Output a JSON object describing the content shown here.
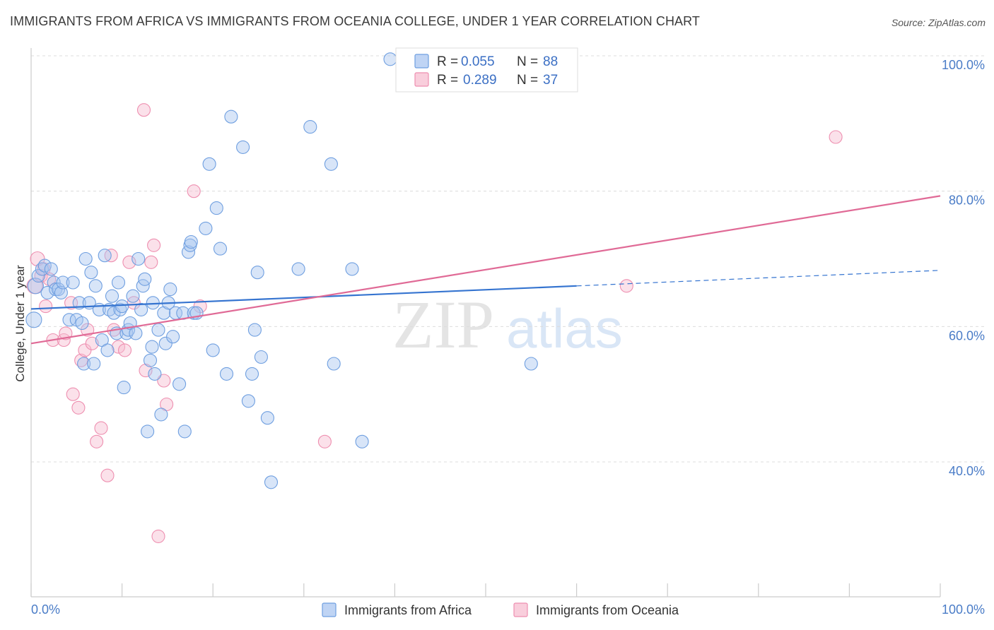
{
  "title": "IMMIGRANTS FROM AFRICA VS IMMIGRANTS FROM OCEANIA COLLEGE, UNDER 1 YEAR CORRELATION CHART",
  "source": "Source: ZipAtlas.com",
  "watermark": {
    "zip": "ZIP",
    "atlas": "atlas"
  },
  "colors": {
    "africa_fill": "#a9c6f0",
    "africa_stroke": "#6f9fe0",
    "africa_line": "#3574d0",
    "oceania_fill": "#f7bdd0",
    "oceania_stroke": "#ee8fb0",
    "oceania_line": "#e06a96",
    "tick_label": "#4a7cc7"
  },
  "legend": {
    "rows": [
      {
        "r_label": "R =",
        "r_value": "0.055",
        "n_label": "N =",
        "n_value": "88"
      },
      {
        "r_label": "R =",
        "r_value": "0.289",
        "n_label": "N =",
        "n_value": "37"
      }
    ]
  },
  "chart_data": {
    "type": "scatter",
    "title": "IMMIGRANTS FROM AFRICA VS IMMIGRANTS FROM OCEANIA COLLEGE, UNDER 1 YEAR CORRELATION CHART",
    "xlabel": "",
    "ylabel": "College, Under 1 year",
    "xlim": [
      0,
      100
    ],
    "ylim": [
      20,
      102
    ],
    "x_tick_labels": [
      "0.0%",
      "100.0%"
    ],
    "y_ticks": [
      {
        "value": 100,
        "label": "100.0%"
      },
      {
        "value": 80,
        "label": "80.0%"
      },
      {
        "value": 60,
        "label": "60.0%"
      },
      {
        "value": 40,
        "label": "40.0%"
      }
    ],
    "series": [
      {
        "name": "Immigrants from Africa",
        "R": 0.055,
        "N": 88,
        "trend": {
          "x0": 0,
          "y0": 62.6,
          "x1": 60,
          "y1": 66.0,
          "dashed_to_x": 100,
          "dashed_to_y": 68.3
        },
        "points": [
          [
            0.3,
            61.0,
            11
          ],
          [
            0.5,
            66.0,
            11
          ],
          [
            0.8,
            67.5,
            9
          ],
          [
            1.2,
            68.5,
            9
          ],
          [
            1.5,
            69.0,
            9
          ],
          [
            1.8,
            65.0,
            9
          ],
          [
            2.2,
            68.5,
            9
          ],
          [
            2.5,
            66.5,
            9
          ],
          [
            2.7,
            65.5,
            9
          ],
          [
            3.0,
            65.5,
            9
          ],
          [
            3.3,
            65.0,
            9
          ],
          [
            3.5,
            66.5,
            9
          ],
          [
            4.2,
            61.0,
            9
          ],
          [
            4.6,
            66.5,
            9
          ],
          [
            5.0,
            61.0,
            9
          ],
          [
            5.3,
            63.5,
            9
          ],
          [
            5.6,
            60.5,
            9
          ],
          [
            5.8,
            54.5,
            9
          ],
          [
            6.0,
            70.0,
            9
          ],
          [
            6.4,
            63.5,
            9
          ],
          [
            6.6,
            68.0,
            9
          ],
          [
            6.9,
            54.5,
            9
          ],
          [
            7.1,
            66.0,
            9
          ],
          [
            7.5,
            62.5,
            9
          ],
          [
            7.8,
            58.0,
            9
          ],
          [
            8.1,
            70.5,
            9
          ],
          [
            8.4,
            56.5,
            9
          ],
          [
            8.6,
            62.5,
            9
          ],
          [
            8.9,
            64.5,
            9
          ],
          [
            9.1,
            62.0,
            9
          ],
          [
            9.4,
            59.0,
            9
          ],
          [
            9.6,
            66.5,
            9
          ],
          [
            9.8,
            62.5,
            9
          ],
          [
            10.0,
            63.0,
            9
          ],
          [
            10.2,
            51.0,
            9
          ],
          [
            10.5,
            59.0,
            9
          ],
          [
            10.7,
            59.5,
            9
          ],
          [
            10.9,
            60.5,
            9
          ],
          [
            11.2,
            64.5,
            9
          ],
          [
            11.5,
            59.0,
            9
          ],
          [
            11.8,
            70.0,
            9
          ],
          [
            12.1,
            62.5,
            9
          ],
          [
            12.3,
            66.0,
            9
          ],
          [
            12.5,
            67.0,
            9
          ],
          [
            12.8,
            44.5,
            9
          ],
          [
            13.1,
            55.0,
            9
          ],
          [
            13.3,
            57.0,
            9
          ],
          [
            13.6,
            53.0,
            9
          ],
          [
            14.0,
            59.5,
            9
          ],
          [
            14.3,
            47.0,
            9
          ],
          [
            14.6,
            62.0,
            9
          ],
          [
            14.8,
            57.5,
            9
          ],
          [
            15.1,
            63.5,
            9
          ],
          [
            15.3,
            65.5,
            9
          ],
          [
            15.6,
            58.5,
            9
          ],
          [
            15.9,
            62.0,
            9
          ],
          [
            16.3,
            51.5,
            9
          ],
          [
            16.7,
            62.0,
            9
          ],
          [
            16.9,
            44.5,
            9
          ],
          [
            17.3,
            71.0,
            9
          ],
          [
            17.5,
            72.0,
            9
          ],
          [
            17.6,
            72.5,
            9
          ],
          [
            17.9,
            62.0,
            9
          ],
          [
            18.2,
            62.0,
            9
          ],
          [
            19.2,
            74.5,
            9
          ],
          [
            19.6,
            84.0,
            9
          ],
          [
            20.0,
            56.5,
            9
          ],
          [
            20.4,
            77.5,
            9
          ],
          [
            20.8,
            71.5,
            9
          ],
          [
            21.5,
            53.0,
            9
          ],
          [
            22.0,
            91.0,
            9
          ],
          [
            23.3,
            86.5,
            9
          ],
          [
            23.9,
            49.0,
            9
          ],
          [
            24.3,
            53.0,
            9
          ],
          [
            24.6,
            59.5,
            9
          ],
          [
            24.9,
            68.0,
            9
          ],
          [
            25.3,
            55.5,
            9
          ],
          [
            26.0,
            46.5,
            9
          ],
          [
            26.4,
            37.0,
            9
          ],
          [
            29.4,
            68.5,
            9
          ],
          [
            30.7,
            89.5,
            9
          ],
          [
            33.0,
            84.0,
            9
          ],
          [
            33.3,
            54.5,
            9
          ],
          [
            35.3,
            68.5,
            9
          ],
          [
            36.4,
            43.0,
            9
          ],
          [
            39.5,
            99.5,
            9
          ],
          [
            55.0,
            54.5,
            9
          ],
          [
            13.4,
            63.5,
            9
          ]
        ]
      },
      {
        "name": "Immigrants from Oceania",
        "R": 0.289,
        "N": 37,
        "trend": {
          "x0": 0,
          "y0": 57.5,
          "x1": 100,
          "y1": 79.3
        },
        "points": [
          [
            0.4,
            66.0,
            11
          ],
          [
            0.7,
            70.0,
            10
          ],
          [
            1.1,
            67.5,
            9
          ],
          [
            1.4,
            68.5,
            9
          ],
          [
            1.6,
            63.0,
            9
          ],
          [
            2.0,
            67.0,
            9
          ],
          [
            2.4,
            58.0,
            9
          ],
          [
            3.6,
            58.0,
            9
          ],
          [
            3.8,
            59.0,
            9
          ],
          [
            4.4,
            63.5,
            9
          ],
          [
            4.6,
            50.0,
            9
          ],
          [
            5.2,
            48.0,
            9
          ],
          [
            5.5,
            55.0,
            9
          ],
          [
            5.9,
            56.5,
            9
          ],
          [
            6.2,
            59.5,
            9
          ],
          [
            6.7,
            57.5,
            9
          ],
          [
            7.2,
            43.0,
            9
          ],
          [
            7.7,
            45.0,
            9
          ],
          [
            8.4,
            38.0,
            9
          ],
          [
            8.8,
            70.5,
            9
          ],
          [
            9.1,
            59.5,
            9
          ],
          [
            9.6,
            57.0,
            9
          ],
          [
            10.3,
            56.5,
            9
          ],
          [
            10.8,
            69.5,
            9
          ],
          [
            11.3,
            63.5,
            9
          ],
          [
            12.4,
            92.0,
            9
          ],
          [
            12.6,
            53.5,
            9
          ],
          [
            13.2,
            69.5,
            9
          ],
          [
            13.5,
            72.0,
            9
          ],
          [
            14.0,
            29.0,
            9
          ],
          [
            14.9,
            48.5,
            9
          ],
          [
            17.9,
            80.0,
            9
          ],
          [
            18.6,
            63.0,
            9
          ],
          [
            32.3,
            43.0,
            9
          ],
          [
            65.5,
            66.0,
            9
          ],
          [
            88.5,
            88.0,
            9
          ],
          [
            14.6,
            52.0,
            9
          ]
        ]
      }
    ]
  }
}
